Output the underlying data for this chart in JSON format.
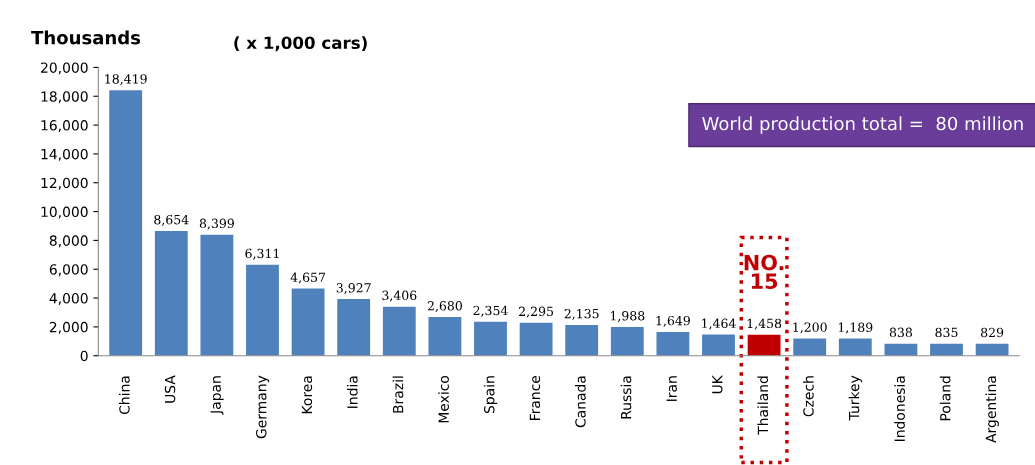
{
  "chart_data": {
    "type": "bar",
    "ylabel": "Thousands",
    "categories": [
      "China",
      "USA",
      "Japan",
      "Germany",
      "Korea",
      "India",
      "Brazil",
      "Mexico",
      "Spain",
      "France",
      "Canada",
      "Russia",
      "Iran",
      "UK",
      "Thailand",
      "Czech",
      "Turkey",
      "Indonesia",
      "Poland",
      "Argentina"
    ],
    "values": [
      18419,
      8654,
      8399,
      6311,
      4657,
      3927,
      3406,
      2680,
      2354,
      2295,
      2135,
      1988,
      1649,
      1464,
      1458,
      1200,
      1189,
      838,
      835,
      829
    ],
    "colors": [
      "#4f81bd",
      "#4f81bd",
      "#4f81bd",
      "#4f81bd",
      "#4f81bd",
      "#4f81bd",
      "#4f81bd",
      "#4f81bd",
      "#4f81bd",
      "#4f81bd",
      "#4f81bd",
      "#4f81bd",
      "#4f81bd",
      "#4f81bd",
      "#c00000",
      "#4f81bd",
      "#4f81bd",
      "#4f81bd",
      "#4f81bd",
      "#4f81bd"
    ],
    "ylim": [
      0,
      20000
    ],
    "yticks": [
      {
        "value": 0,
        "label": "0"
      },
      {
        "value": 2000,
        "label": "2,000"
      },
      {
        "value": 4000,
        "label": "4,000"
      },
      {
        "value": 6000,
        "label": "6,000"
      },
      {
        "value": 8000,
        "label": "8,000"
      },
      {
        "value": 10000,
        "label": "10,000"
      },
      {
        "value": 12000,
        "label": "12,000"
      },
      {
        "value": 14000,
        "label": "14,000"
      },
      {
        "value": 16000,
        "label": "16,000"
      },
      {
        "value": 18000,
        "label": "18,000"
      },
      {
        "value": 20000,
        "label": "20,000"
      }
    ],
    "value_labels": [
      "18,419",
      "8,654",
      "8,399",
      "6,311",
      "4,657",
      "3,927",
      "3,406",
      "2,680",
      "2,354",
      "2,295",
      "2,135",
      "1,988",
      "1,649",
      "1,464",
      "1,458",
      "1,200",
      "1,189",
      "838",
      "835",
      "829"
    ],
    "grid": false,
    "legend": false,
    "annotations": [
      "( x 1,000 cars)",
      "World production total =  80 million",
      {
        "text": "NO.\n15",
        "x": "Thailand",
        "y": 1458
      }
    ]
  }
}
